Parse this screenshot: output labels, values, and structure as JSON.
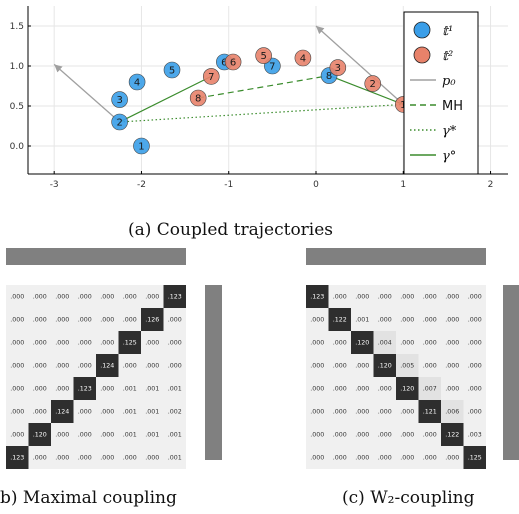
{
  "colors": {
    "t1": "#3a9ee8",
    "t2": "#e8826a",
    "p0": "#a0a0a0",
    "coupling": "#3b8c2d",
    "matrix_light": "#f0f0f0",
    "matrix_dark": "#2e2e2e",
    "marginal_bar": "#808080"
  },
  "chart_data": [
    {
      "type": "scatter",
      "axes": {
        "xlim": [
          -3.3,
          2.2
        ],
        "ylim": [
          -0.35,
          1.75
        ],
        "grid": true
      },
      "xticks": [
        "-3",
        "-2",
        "-1",
        "0",
        "1",
        "2"
      ],
      "yticks": [
        "0.0",
        "0.5",
        "1.0",
        "1.5"
      ],
      "legend": {
        "placement": "top-right"
      },
      "series": [
        {
          "name": "𝕥¹",
          "points": [
            {
              "label": "1",
              "x": -2.0,
              "y": 0.0
            },
            {
              "label": "2",
              "x": -2.25,
              "y": 0.3
            },
            {
              "label": "3",
              "x": -2.25,
              "y": 0.58
            },
            {
              "label": "4",
              "x": -2.05,
              "y": 0.8
            },
            {
              "label": "5",
              "x": -1.65,
              "y": 0.95
            },
            {
              "label": "6",
              "x": -1.05,
              "y": 1.05
            },
            {
              "label": "7",
              "x": -0.5,
              "y": 1.0
            },
            {
              "label": "8",
              "x": 0.15,
              "y": 0.88
            }
          ]
        },
        {
          "name": "𝕥²",
          "points": [
            {
              "label": "1",
              "x": 1.0,
              "y": 0.52
            },
            {
              "label": "2",
              "x": 0.65,
              "y": 0.78
            },
            {
              "label": "3",
              "x": 0.25,
              "y": 0.98
            },
            {
              "label": "4",
              "x": -0.15,
              "y": 1.1
            },
            {
              "label": "5",
              "x": -0.6,
              "y": 1.13
            },
            {
              "label": "6",
              "x": -0.95,
              "y": 1.05
            },
            {
              "label": "7",
              "x": -1.2,
              "y": 0.87
            },
            {
              "label": "8",
              "x": -1.35,
              "y": 0.6
            }
          ]
        },
        {
          "name": "p₀",
          "style": "arrows",
          "arrows": [
            {
              "from": [
                -2.25,
                0.3
              ],
              "to": [
                -3.0,
                1.02
              ]
            },
            {
              "from": [
                1.0,
                0.52
              ],
              "to": [
                0.0,
                1.5
              ]
            }
          ]
        },
        {
          "name": "MH",
          "style": "dashed",
          "segments": [
            {
              "from": [
                -1.35,
                0.6
              ],
              "to": [
                0.15,
                0.88
              ]
            }
          ]
        },
        {
          "name": "γ*",
          "style": "dotted",
          "segments": [
            {
              "from": [
                -2.25,
                0.3
              ],
              "to": [
                1.0,
                0.52
              ]
            }
          ]
        },
        {
          "name": "γ°",
          "style": "solid",
          "segments": [
            {
              "from": [
                -2.25,
                0.3
              ],
              "to": [
                -1.2,
                0.87
              ]
            },
            {
              "from": [
                0.15,
                0.88
              ],
              "to": [
                1.0,
                0.52
              ]
            }
          ]
        }
      ]
    },
    {
      "type": "heatmap",
      "matrix": [
        [
          ".000",
          ".000",
          ".000",
          ".000",
          ".000",
          ".000",
          ".000",
          ".123"
        ],
        [
          ".000",
          ".000",
          ".000",
          ".000",
          ".000",
          ".000",
          ".126",
          ".000"
        ],
        [
          ".000",
          ".000",
          ".000",
          ".000",
          ".000",
          ".125",
          ".000",
          ".000"
        ],
        [
          ".000",
          ".000",
          ".000",
          ".000",
          ".124",
          ".000",
          ".000",
          ".000"
        ],
        [
          ".000",
          ".000",
          ".000",
          ".123",
          ".000",
          ".001",
          ".001",
          ".001"
        ],
        [
          ".000",
          ".000",
          ".124",
          ".000",
          ".000",
          ".001",
          ".001",
          ".002"
        ],
        [
          ".000",
          ".120",
          ".000",
          ".000",
          ".000",
          ".001",
          ".001",
          ".001"
        ],
        [
          ".123",
          ".000",
          ".000",
          ".000",
          ".000",
          ".000",
          ".000",
          ".001"
        ]
      ]
    },
    {
      "type": "heatmap",
      "matrix": [
        [
          ".123",
          ".000",
          ".000",
          ".000",
          ".000",
          ".000",
          ".000",
          ".000"
        ],
        [
          ".000",
          ".122",
          ".001",
          ".000",
          ".000",
          ".000",
          ".000",
          ".000"
        ],
        [
          ".000",
          ".000",
          ".120",
          ".004",
          ".000",
          ".000",
          ".000",
          ".000"
        ],
        [
          ".000",
          ".000",
          ".000",
          ".120",
          ".005",
          ".000",
          ".000",
          ".000"
        ],
        [
          ".000",
          ".000",
          ".000",
          ".000",
          ".120",
          ".007",
          ".000",
          ".000"
        ],
        [
          ".000",
          ".000",
          ".000",
          ".000",
          ".000",
          ".121",
          ".006",
          ".000"
        ],
        [
          ".000",
          ".000",
          ".000",
          ".000",
          ".000",
          ".000",
          ".122",
          ".003"
        ],
        [
          ".000",
          ".000",
          ".000",
          ".000",
          ".000",
          ".000",
          ".000",
          ".125"
        ]
      ]
    }
  ],
  "captions": {
    "a": "(a) Coupled trajectories",
    "b": "b) Maximal coupling",
    "c": "(c) W₂-coupling"
  }
}
